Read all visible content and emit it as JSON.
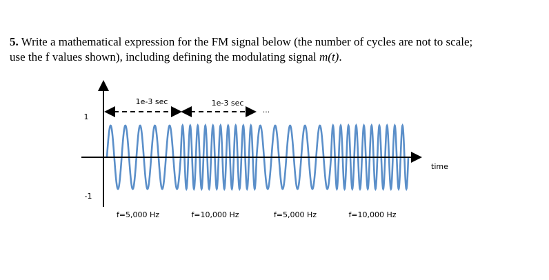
{
  "question": {
    "number": "5.",
    "text_before": "Write a mathematical expression for the FM signal below (the number of cycles are not to scale; use the f values shown), including defining the modulating signal",
    "math": "m(t)",
    "text_after": "."
  },
  "figure": {
    "y_top_label": "1",
    "y_bottom_label": "-1",
    "x_axis_label": "time",
    "durations": [
      "1e-3 sec",
      "1e-3 sec"
    ],
    "ellipsis": "...",
    "frequency_labels": [
      "f=5,000 Hz",
      "f=10,000 Hz",
      "f=5,000 Hz",
      "f=10,000 Hz"
    ]
  }
}
